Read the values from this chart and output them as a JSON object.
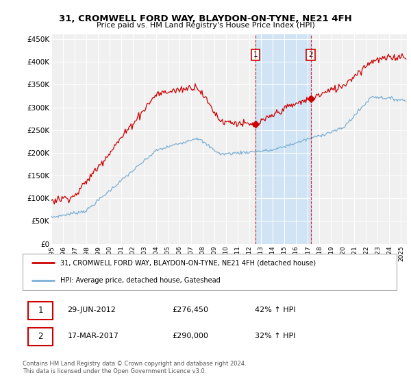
{
  "title": "31, CROMWELL FORD WAY, BLAYDON-ON-TYNE, NE21 4FH",
  "subtitle": "Price paid vs. HM Land Registry's House Price Index (HPI)",
  "legend_line1": "31, CROMWELL FORD WAY, BLAYDON-ON-TYNE, NE21 4FH (detached house)",
  "legend_line2": "HPI: Average price, detached house, Gateshead",
  "sale1_date": "29-JUN-2012",
  "sale1_price": "£276,450",
  "sale1_hpi": "42% ↑ HPI",
  "sale2_date": "17-MAR-2017",
  "sale2_price": "£290,000",
  "sale2_hpi": "32% ↑ HPI",
  "copyright": "Contains HM Land Registry data © Crown copyright and database right 2024.\nThis data is licensed under the Open Government Licence v3.0.",
  "hpi_line_color": "#7bafd4",
  "hpi_shade_color": "#d0e4f5",
  "red_color": "#cc0000",
  "sale1_x_year": 2012.5,
  "sale2_x_year": 2017.25,
  "ylim_min": 0,
  "ylim_max": 460000,
  "xlim_min": 1995.0,
  "xlim_max": 2025.5,
  "background_color": "#ffffff",
  "plot_bg_color": "#f0f0f0"
}
